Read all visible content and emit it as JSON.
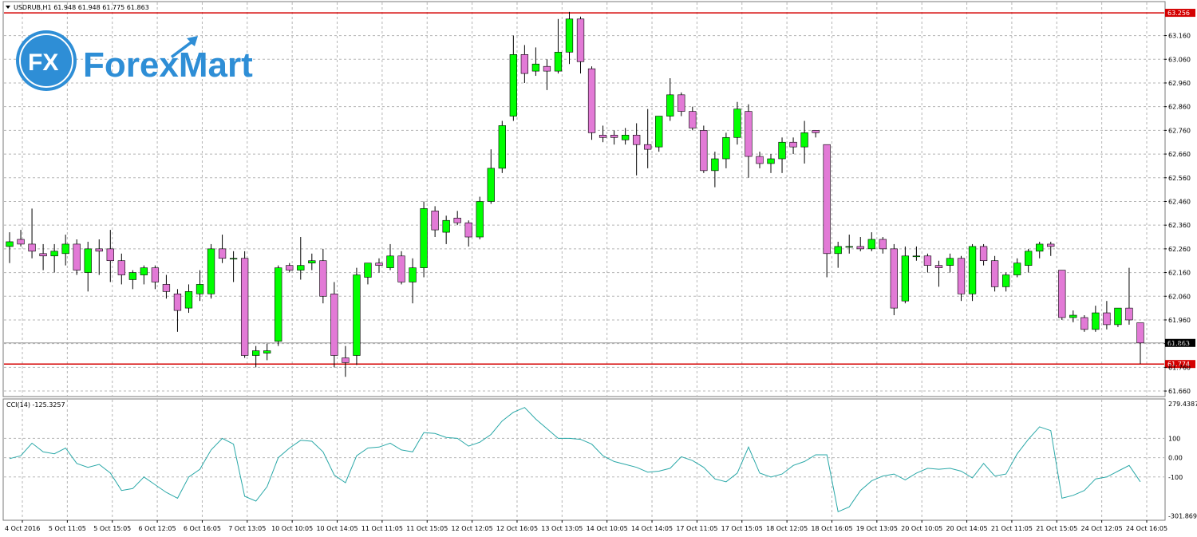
{
  "header": {
    "symbol_line": "USDRUB,H1  61.948 61.948 61.775 61.863",
    "cci_line": "CCI(14) -125.3257"
  },
  "logo": {
    "mark": "FX",
    "brand": "ForexMart"
  },
  "colors": {
    "bull": "#00ff00",
    "bear": "#e27ad6",
    "grid": "#b5b5b5",
    "level": "#d40000",
    "cci": "#2aa8a8"
  },
  "chart_data": [
    {
      "type": "candlestick",
      "ylim": [
        61.64,
        63.3
      ],
      "yticks": [
        "63.160",
        "63.060",
        "62.960",
        "62.860",
        "62.760",
        "62.660",
        "62.560",
        "62.460",
        "62.360",
        "62.260",
        "62.160",
        "62.060",
        "61.960",
        "61.860",
        "61.760",
        "61.660"
      ],
      "xticks": [
        "4 Oct 2016",
        "5 Oct 11:05",
        "5 Oct 15:05",
        "6 Oct 12:05",
        "6 Oct 16:05",
        "7 Oct 13:05",
        "10 Oct 10:05",
        "10 Oct 14:05",
        "11 Oct 11:05",
        "11 Oct 15:05",
        "12 Oct 12:05",
        "12 Oct 16:05",
        "13 Oct 13:05",
        "14 Oct 10:05",
        "14 Oct 14:05",
        "17 Oct 11:05",
        "17 Oct 15:05",
        "18 Oct 12:05",
        "18 Oct 16:05",
        "19 Oct 13:05",
        "20 Oct 10:05",
        "20 Oct 14:05",
        "21 Oct 11:05",
        "21 Oct 15:05",
        "24 Oct 12:05",
        "24 Oct 16:05"
      ],
      "levels": [
        {
          "value": 63.256,
          "label": "63.256"
        },
        {
          "value": 61.774,
          "label": "61.774"
        }
      ],
      "current": {
        "value": 61.863,
        "label": "61.863"
      },
      "candles": [
        {
          "o": 62.27,
          "h": 62.33,
          "l": 62.2,
          "c": 62.29
        },
        {
          "o": 62.3,
          "h": 62.34,
          "l": 62.27,
          "c": 62.28
        },
        {
          "o": 62.28,
          "h": 62.43,
          "l": 62.22,
          "c": 62.25
        },
        {
          "o": 62.24,
          "h": 62.28,
          "l": 62.17,
          "c": 62.23
        },
        {
          "o": 62.23,
          "h": 62.28,
          "l": 62.16,
          "c": 62.25
        },
        {
          "o": 62.24,
          "h": 62.32,
          "l": 62.19,
          "c": 62.28
        },
        {
          "o": 62.28,
          "h": 62.3,
          "l": 62.15,
          "c": 62.17
        },
        {
          "o": 62.16,
          "h": 62.29,
          "l": 62.08,
          "c": 62.26
        },
        {
          "o": 62.26,
          "h": 62.3,
          "l": 62.15,
          "c": 62.25
        },
        {
          "o": 62.26,
          "h": 62.34,
          "l": 62.12,
          "c": 62.21
        },
        {
          "o": 62.21,
          "h": 62.24,
          "l": 62.11,
          "c": 62.15
        },
        {
          "o": 62.13,
          "h": 62.17,
          "l": 62.09,
          "c": 62.16
        },
        {
          "o": 62.15,
          "h": 62.19,
          "l": 62.11,
          "c": 62.18
        },
        {
          "o": 62.18,
          "h": 62.19,
          "l": 62.09,
          "c": 62.12
        },
        {
          "o": 62.11,
          "h": 62.15,
          "l": 62.05,
          "c": 62.08
        },
        {
          "o": 62.07,
          "h": 62.09,
          "l": 61.91,
          "c": 62.0
        },
        {
          "o": 62.01,
          "h": 62.11,
          "l": 61.99,
          "c": 62.08
        },
        {
          "o": 62.07,
          "h": 62.17,
          "l": 62.04,
          "c": 62.11
        },
        {
          "o": 62.07,
          "h": 62.28,
          "l": 62.05,
          "c": 62.26
        },
        {
          "o": 62.26,
          "h": 62.32,
          "l": 62.2,
          "c": 62.22
        },
        {
          "o": 62.22,
          "h": 62.25,
          "l": 62.12,
          "c": 62.22
        },
        {
          "o": 62.22,
          "h": 62.25,
          "l": 61.8,
          "c": 61.81
        },
        {
          "o": 61.81,
          "h": 61.85,
          "l": 61.76,
          "c": 61.83
        },
        {
          "o": 61.82,
          "h": 61.86,
          "l": 61.79,
          "c": 61.83
        },
        {
          "o": 61.87,
          "h": 62.19,
          "l": 61.85,
          "c": 62.18
        },
        {
          "o": 62.19,
          "h": 62.2,
          "l": 62.16,
          "c": 62.17
        },
        {
          "o": 62.17,
          "h": 62.31,
          "l": 62.13,
          "c": 62.19
        },
        {
          "o": 62.2,
          "h": 62.24,
          "l": 62.17,
          "c": 62.21
        },
        {
          "o": 62.21,
          "h": 62.26,
          "l": 62.03,
          "c": 62.06
        },
        {
          "o": 62.07,
          "h": 62.12,
          "l": 61.76,
          "c": 61.81
        },
        {
          "o": 61.8,
          "h": 61.85,
          "l": 61.72,
          "c": 61.78
        },
        {
          "o": 61.81,
          "h": 62.18,
          "l": 61.77,
          "c": 62.15
        },
        {
          "o": 62.14,
          "h": 62.2,
          "l": 62.11,
          "c": 62.2
        },
        {
          "o": 62.2,
          "h": 62.22,
          "l": 62.16,
          "c": 62.19
        },
        {
          "o": 62.18,
          "h": 62.28,
          "l": 62.17,
          "c": 62.23
        },
        {
          "o": 62.23,
          "h": 62.25,
          "l": 62.11,
          "c": 62.12
        },
        {
          "o": 62.12,
          "h": 62.22,
          "l": 62.03,
          "c": 62.18
        },
        {
          "o": 62.18,
          "h": 62.46,
          "l": 62.14,
          "c": 62.43
        },
        {
          "o": 62.42,
          "h": 62.44,
          "l": 62.31,
          "c": 62.34
        },
        {
          "o": 62.33,
          "h": 62.4,
          "l": 62.28,
          "c": 62.38
        },
        {
          "o": 62.39,
          "h": 62.42,
          "l": 62.36,
          "c": 62.37
        },
        {
          "o": 62.37,
          "h": 62.38,
          "l": 62.27,
          "c": 62.31
        },
        {
          "o": 62.31,
          "h": 62.48,
          "l": 62.3,
          "c": 62.46
        },
        {
          "o": 62.46,
          "h": 62.68,
          "l": 62.45,
          "c": 62.6
        },
        {
          "o": 62.6,
          "h": 62.8,
          "l": 62.58,
          "c": 62.78
        },
        {
          "o": 62.82,
          "h": 63.16,
          "l": 62.8,
          "c": 63.08
        },
        {
          "o": 63.08,
          "h": 63.12,
          "l": 62.96,
          "c": 63.0
        },
        {
          "o": 63.01,
          "h": 63.11,
          "l": 62.99,
          "c": 63.04
        },
        {
          "o": 63.03,
          "h": 63.06,
          "l": 62.93,
          "c": 63.01
        },
        {
          "o": 63.01,
          "h": 63.23,
          "l": 63.0,
          "c": 63.09
        },
        {
          "o": 63.09,
          "h": 63.26,
          "l": 63.04,
          "c": 63.23
        },
        {
          "o": 63.23,
          "h": 63.24,
          "l": 63.0,
          "c": 63.05
        },
        {
          "o": 63.02,
          "h": 63.03,
          "l": 62.72,
          "c": 62.75
        },
        {
          "o": 62.74,
          "h": 62.78,
          "l": 62.71,
          "c": 62.73
        },
        {
          "o": 62.74,
          "h": 62.76,
          "l": 62.7,
          "c": 62.73
        },
        {
          "o": 62.72,
          "h": 62.77,
          "l": 62.7,
          "c": 62.74
        },
        {
          "o": 62.74,
          "h": 62.79,
          "l": 62.57,
          "c": 62.7
        },
        {
          "o": 62.7,
          "h": 62.85,
          "l": 62.6,
          "c": 62.68
        },
        {
          "o": 62.69,
          "h": 62.82,
          "l": 62.67,
          "c": 62.82
        },
        {
          "o": 62.82,
          "h": 62.98,
          "l": 62.8,
          "c": 62.91
        },
        {
          "o": 62.91,
          "h": 62.92,
          "l": 62.82,
          "c": 62.84
        },
        {
          "o": 62.84,
          "h": 62.86,
          "l": 62.76,
          "c": 62.77
        },
        {
          "o": 62.76,
          "h": 62.78,
          "l": 62.58,
          "c": 62.59
        },
        {
          "o": 62.59,
          "h": 62.67,
          "l": 62.52,
          "c": 62.64
        },
        {
          "o": 62.64,
          "h": 62.75,
          "l": 62.6,
          "c": 62.73
        },
        {
          "o": 62.73,
          "h": 62.88,
          "l": 62.7,
          "c": 62.85
        },
        {
          "o": 62.84,
          "h": 62.87,
          "l": 62.56,
          "c": 62.65
        },
        {
          "o": 62.65,
          "h": 62.67,
          "l": 62.6,
          "c": 62.62
        },
        {
          "o": 62.62,
          "h": 62.66,
          "l": 62.58,
          "c": 62.64
        },
        {
          "o": 62.64,
          "h": 62.73,
          "l": 62.58,
          "c": 62.71
        },
        {
          "o": 62.71,
          "h": 62.73,
          "l": 62.66,
          "c": 62.69
        },
        {
          "o": 62.69,
          "h": 62.8,
          "l": 62.62,
          "c": 62.75
        },
        {
          "o": 62.76,
          "h": 62.76,
          "l": 62.73,
          "c": 62.75
        },
        {
          "o": 62.7,
          "h": 62.7,
          "l": 62.14,
          "c": 62.24
        },
        {
          "o": 62.24,
          "h": 62.29,
          "l": 62.18,
          "c": 62.27
        },
        {
          "o": 62.27,
          "h": 62.32,
          "l": 62.24,
          "c": 62.27
        },
        {
          "o": 62.27,
          "h": 62.31,
          "l": 62.25,
          "c": 62.26
        },
        {
          "o": 62.26,
          "h": 62.33,
          "l": 62.25,
          "c": 62.3
        },
        {
          "o": 62.3,
          "h": 62.31,
          "l": 62.24,
          "c": 62.26
        },
        {
          "o": 62.26,
          "h": 62.28,
          "l": 61.98,
          "c": 62.01
        },
        {
          "o": 62.04,
          "h": 62.27,
          "l": 62.03,
          "c": 62.23
        },
        {
          "o": 62.23,
          "h": 62.27,
          "l": 62.21,
          "c": 62.23
        },
        {
          "o": 62.23,
          "h": 62.24,
          "l": 62.16,
          "c": 62.19
        },
        {
          "o": 62.19,
          "h": 62.21,
          "l": 62.1,
          "c": 62.18
        },
        {
          "o": 62.19,
          "h": 62.24,
          "l": 62.16,
          "c": 62.22
        },
        {
          "o": 62.22,
          "h": 62.23,
          "l": 62.04,
          "c": 62.07
        },
        {
          "o": 62.07,
          "h": 62.28,
          "l": 62.04,
          "c": 62.27
        },
        {
          "o": 62.27,
          "h": 62.28,
          "l": 62.19,
          "c": 62.21
        },
        {
          "o": 62.21,
          "h": 62.23,
          "l": 62.08,
          "c": 62.1
        },
        {
          "o": 62.1,
          "h": 62.16,
          "l": 62.08,
          "c": 62.15
        },
        {
          "o": 62.15,
          "h": 62.22,
          "l": 62.14,
          "c": 62.2
        },
        {
          "o": 62.19,
          "h": 62.26,
          "l": 62.16,
          "c": 62.25
        },
        {
          "o": 62.25,
          "h": 62.29,
          "l": 62.22,
          "c": 62.28
        },
        {
          "o": 62.28,
          "h": 62.29,
          "l": 62.23,
          "c": 62.27
        },
        {
          "o": 62.17,
          "h": 62.17,
          "l": 61.96,
          "c": 61.97
        },
        {
          "o": 61.97,
          "h": 62.0,
          "l": 61.95,
          "c": 61.98
        },
        {
          "o": 61.97,
          "h": 61.98,
          "l": 61.91,
          "c": 61.92
        },
        {
          "o": 61.92,
          "h": 62.02,
          "l": 61.91,
          "c": 61.99
        },
        {
          "o": 61.99,
          "h": 62.04,
          "l": 61.92,
          "c": 61.94
        },
        {
          "o": 61.94,
          "h": 62.01,
          "l": 61.93,
          "c": 62.01
        },
        {
          "o": 62.01,
          "h": 62.18,
          "l": 61.94,
          "c": 61.96
        },
        {
          "o": 61.948,
          "h": 61.948,
          "l": 61.775,
          "c": 61.863
        }
      ]
    },
    {
      "type": "line",
      "name": "CCI(14)",
      "ylim": [
        -320,
        300
      ],
      "yticks": [
        {
          "value": 279.4387,
          "label": "279.4387"
        },
        {
          "value": 100,
          "label": "100"
        },
        {
          "value": 0,
          "label": "0.00"
        },
        {
          "value": -100,
          "label": "-100"
        },
        {
          "value": -301.869,
          "label": "-301.869"
        }
      ],
      "values": [
        -5,
        10,
        75,
        30,
        20,
        50,
        -30,
        -50,
        -35,
        -80,
        -170,
        -160,
        -100,
        -140,
        -180,
        -210,
        -100,
        -60,
        40,
        100,
        70,
        -200,
        -225,
        -150,
        0,
        50,
        90,
        85,
        30,
        -90,
        -130,
        10,
        50,
        55,
        75,
        40,
        30,
        130,
        125,
        105,
        100,
        60,
        80,
        120,
        190,
        235,
        260,
        200,
        150,
        100,
        100,
        95,
        70,
        10,
        -20,
        -35,
        -50,
        -75,
        -70,
        -55,
        5,
        -15,
        -50,
        -110,
        -125,
        -80,
        55,
        -80,
        -100,
        -85,
        -40,
        -20,
        15,
        15,
        -280,
        -255,
        -170,
        -120,
        -95,
        -85,
        -115,
        -80,
        -55,
        -60,
        -55,
        -70,
        -105,
        -30,
        -95,
        -85,
        20,
        95,
        160,
        140,
        -210,
        -195,
        -170,
        -110,
        -100,
        -70,
        -40,
        -125
      ]
    }
  ]
}
